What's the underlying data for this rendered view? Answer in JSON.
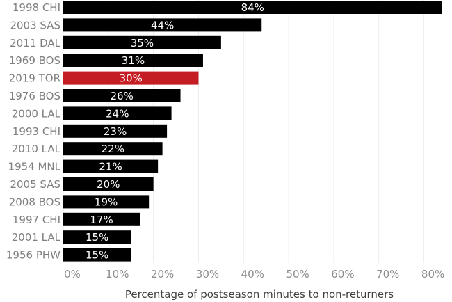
{
  "chart_data": {
    "type": "bar",
    "orientation": "horizontal",
    "categories": [
      "1998 CHI",
      "2003 SAS",
      "2011 DAL",
      "1969 BOS",
      "2019 TOR",
      "1976 BOS",
      "2000 LAL",
      "1993 CHI",
      "2010 LAL",
      "1954 MNL",
      "2005 SAS",
      "2008 BOS",
      "1997 CHI",
      "2001 LAL",
      "1956 PHW"
    ],
    "values": [
      84,
      44,
      35,
      31,
      30,
      26,
      24,
      23,
      22,
      21,
      20,
      19,
      17,
      15,
      15
    ],
    "value_labels": [
      "84%",
      "44%",
      "35%",
      "31%",
      "30%",
      "26%",
      "24%",
      "23%",
      "22%",
      "21%",
      "20%",
      "19%",
      "17%",
      "15%",
      "15%"
    ],
    "highlight_category": "2019 TOR",
    "colors": {
      "default_bar": "#000000",
      "highlight_bar": "#c41e24"
    },
    "xlim": [
      0,
      85
    ],
    "xticks": [
      0,
      10,
      20,
      30,
      40,
      50,
      60,
      70,
      80
    ],
    "xtick_labels": [
      "0%",
      "10%",
      "20%",
      "30%",
      "40%",
      "50%",
      "60%",
      "70%",
      "80%"
    ],
    "xlabel": "Percentage of postseason minutes to non-returners",
    "title": "",
    "ylabel": "",
    "grid": "vertical",
    "legend": "none"
  }
}
